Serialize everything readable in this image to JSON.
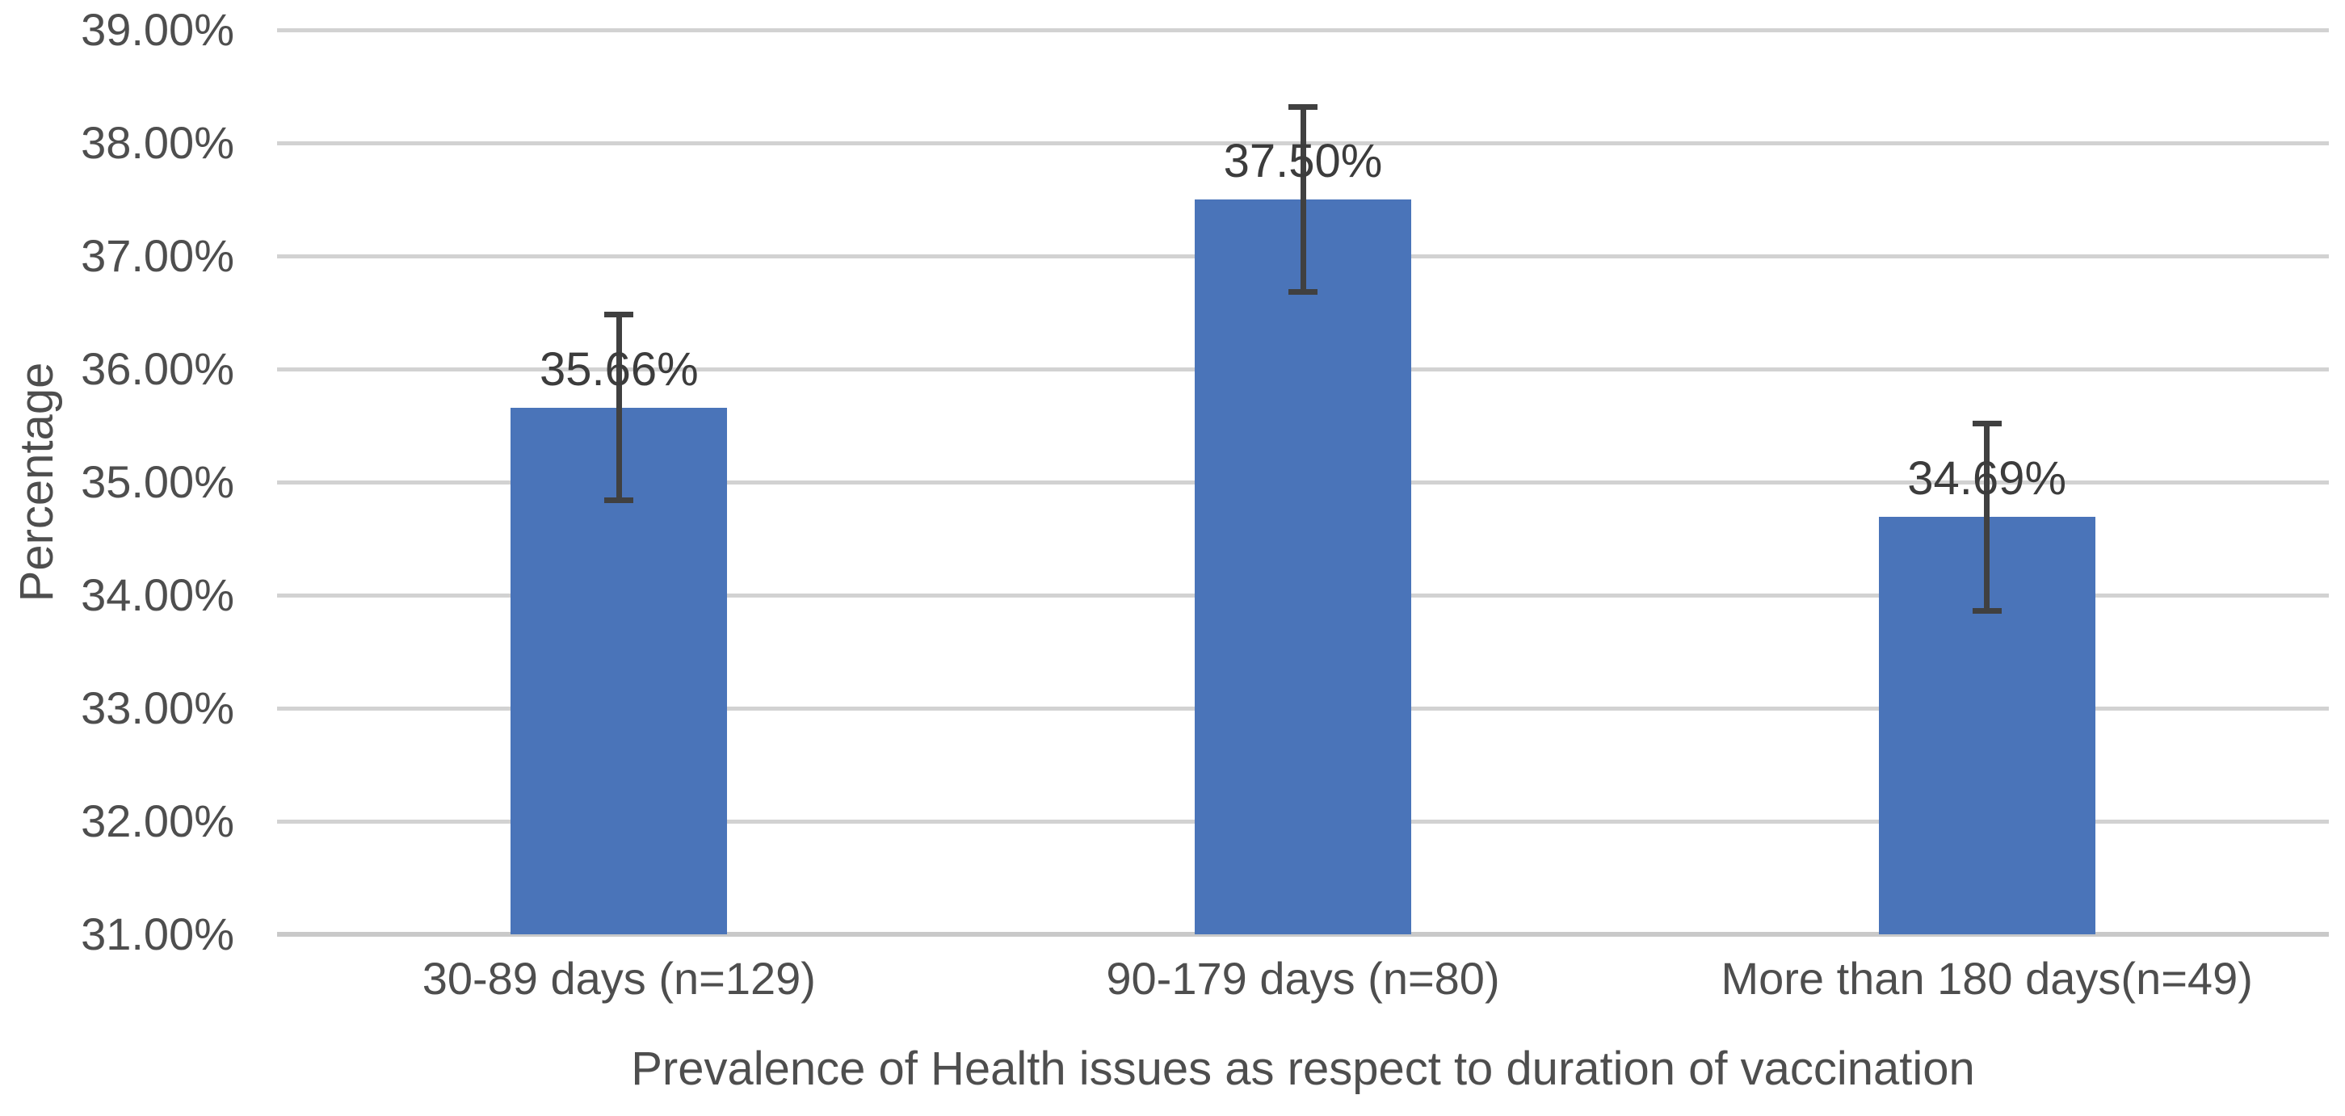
{
  "chart_data": {
    "type": "bar",
    "title": "",
    "categories": [
      "30-89 days (n=129)",
      "90-179 days (n=80)",
      "More than 180 days(n=49)"
    ],
    "values": [
      35.66,
      37.5,
      34.69
    ],
    "data_labels": [
      "35.66%",
      "37.50%",
      "34.69%"
    ],
    "error_bars": {
      "plus": [
        0.82,
        0.82,
        0.83
      ],
      "minus": [
        0.82,
        0.82,
        0.83
      ]
    },
    "xlabel": "Prevalence of Health issues as respect to duration of vaccination",
    "ylabel": "Percentage",
    "ylim": [
      31,
      39
    ],
    "ytick_step": 1,
    "ytick_labels": [
      "31.00%",
      "32.00%",
      "33.00%",
      "34.00%",
      "35.00%",
      "36.00%",
      "37.00%",
      "38.00%",
      "39.00%"
    ],
    "grid": true,
    "legend": false,
    "colors": {
      "bar": "#4A74B9",
      "error_bar": "#404040",
      "gridline": "#D2D2D2",
      "axis_line": "#C9C9C9",
      "axis_text": "#4E4E4E",
      "data_label_text": "#3C3C3C"
    }
  }
}
